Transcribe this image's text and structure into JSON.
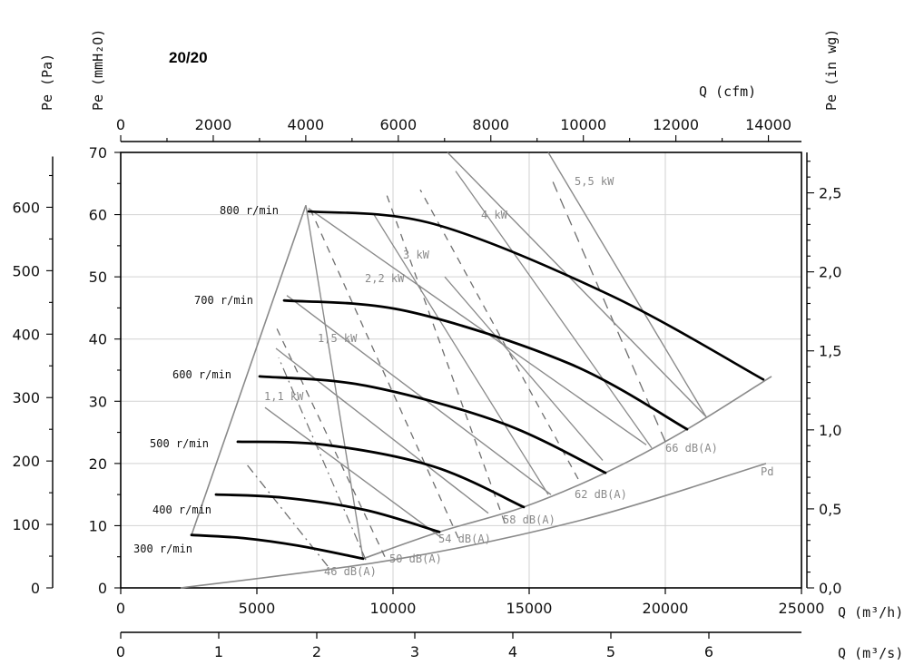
{
  "chart_data": {
    "type": "line",
    "title": "20/20",
    "axes": {
      "x_m3h": {
        "label": "Q (m³/h)",
        "range": [
          0,
          25000
        ],
        "ticks": [
          0,
          5000,
          10000,
          15000,
          20000,
          25000
        ],
        "tick_labels": [
          "0",
          "5000",
          "10000",
          "15000",
          "20000",
          "25000"
        ]
      },
      "x_m3s": {
        "label": "Q (m³/s)",
        "ticks": [
          0,
          1,
          2,
          3,
          4,
          5,
          6
        ],
        "tick_labels": [
          "0",
          "1",
          "2",
          "3",
          "4",
          "5",
          "6"
        ]
      },
      "x_cfm": {
        "label": "Q (cfm)",
        "ticks": [
          0,
          2000,
          4000,
          6000,
          8000,
          10000,
          12000,
          14000
        ],
        "tick_labels": [
          "0",
          "2000",
          "4000",
          "6000",
          "8000",
          "10000",
          "12000",
          "14000"
        ]
      },
      "y_mmh2o": {
        "label": "Pe (mmH₂O)",
        "range": [
          0,
          70
        ],
        "ticks": [
          0,
          10,
          20,
          30,
          40,
          50,
          60,
          70
        ],
        "tick_labels": [
          "0",
          "10",
          "20",
          "30",
          "40",
          "50",
          "60",
          "70"
        ]
      },
      "y_pa": {
        "label": "Pe (Pa)",
        "ticks": [
          0,
          100,
          200,
          300,
          400,
          500,
          600
        ],
        "tick_labels": [
          "0",
          "100",
          "200",
          "300",
          "400",
          "500",
          "600"
        ]
      },
      "y_inwg": {
        "label": "Pe (in wg)",
        "ticks": [
          0,
          0.5,
          1.0,
          1.5,
          2.0,
          2.5
        ],
        "tick_labels": [
          "0,0",
          "0,5",
          "1,0",
          "1,5",
          "2,0",
          "2,5"
        ]
      }
    },
    "grid": true,
    "speed_curves": [
      {
        "name": "300 r/min",
        "x": [
          2600,
          4500,
          6500,
          8900
        ],
        "y": [
          8.5,
          8,
          6.8,
          4.7
        ]
      },
      {
        "name": "400 r/min",
        "x": [
          3500,
          6000,
          9000,
          11700
        ],
        "y": [
          15,
          14.5,
          12.5,
          9
        ]
      },
      {
        "name": "500 r/min",
        "x": [
          4300,
          7500,
          11500,
          14800
        ],
        "y": [
          23.5,
          23,
          19.5,
          13
        ]
      },
      {
        "name": "600 r/min",
        "x": [
          5100,
          9000,
          14000,
          17800
        ],
        "y": [
          34,
          32.5,
          26.5,
          18.5
        ]
      },
      {
        "name": "700 r/min",
        "x": [
          6000,
          10500,
          16500,
          20800
        ],
        "y": [
          46.2,
          44.5,
          36,
          25.5
        ]
      },
      {
        "name": "800 r/min",
        "x": [
          6900,
          11500,
          18000,
          23600
        ],
        "y": [
          60.5,
          58.5,
          47,
          33.5
        ]
      }
    ],
    "power_lines": [
      {
        "name": "1,1 kW",
        "x": [
          5300,
          11800
        ],
        "y": [
          29,
          8
        ]
      },
      {
        "name": "1,5 kW",
        "x": [
          5700,
          13500
        ],
        "y": [
          38.5,
          12
        ]
      },
      {
        "name": "2,2 kW",
        "x": [
          6100,
          15800
        ],
        "y": [
          47,
          15
        ]
      },
      {
        "name": "3 kW",
        "x": [
          6900,
          19300
        ],
        "y": [
          61,
          23
        ]
      },
      {
        "name": "4 kW",
        "x": [
          12000,
          21500
        ],
        "y": [
          70,
          27.5
        ]
      },
      {
        "name": "5,5 kW",
        "x": [
          15700,
          21500
        ],
        "y": [
          70,
          27.5
        ]
      }
    ],
    "sound_labels": [
      "46 dB(A)",
      "50 dB(A)",
      "54 dB(A)",
      "58 dB(A)",
      "62 dB(A)",
      "66 dB(A)"
    ],
    "pd_curve": {
      "name": "Pd",
      "x": [
        2200,
        10000,
        17000,
        23700
      ],
      "y": [
        0,
        4.5,
        11,
        20
      ]
    },
    "envelope": {
      "x": [
        2600,
        6800,
        8900,
        11700,
        14800,
        17800,
        20800,
        23900
      ],
      "y": [
        8.5,
        61.5,
        4.7,
        9,
        13,
        18.5,
        25.5,
        34
      ]
    }
  }
}
